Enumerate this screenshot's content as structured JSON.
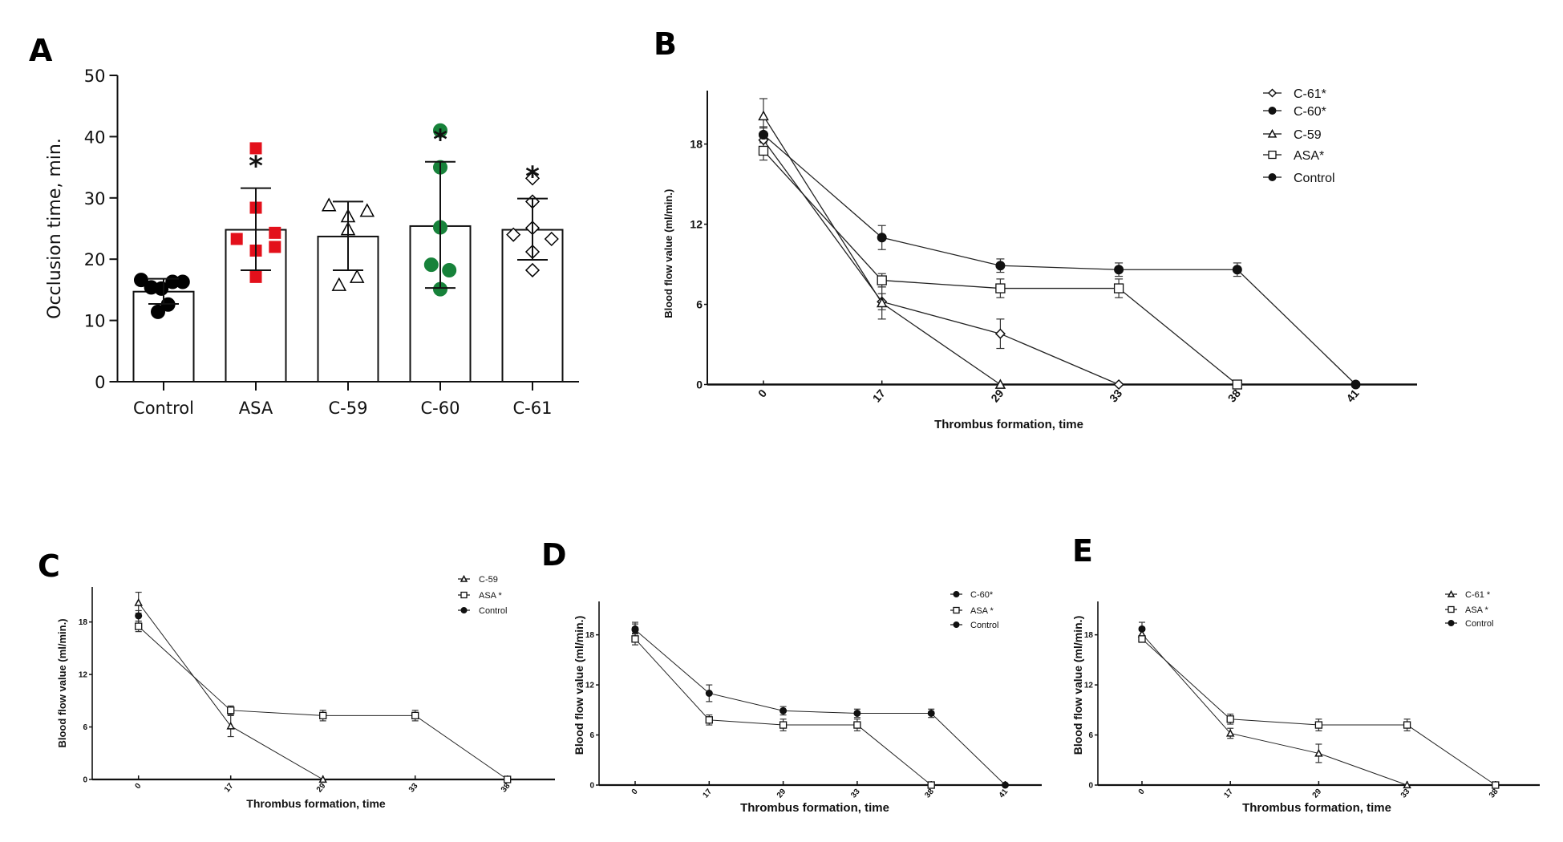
{
  "figure": {
    "panel_letters": [
      "A",
      "B",
      "C",
      "D",
      "E"
    ]
  },
  "chart_data": [
    {
      "panel": "A",
      "type": "bar",
      "title": "",
      "xlabel": "",
      "ylabel": "Occlusion time, min.",
      "ylim": [
        0,
        50
      ],
      "yticks": [
        0,
        10,
        20,
        30,
        40,
        50
      ],
      "grid": false,
      "categories": [
        "Control",
        "ASA",
        "C-59",
        "C-60",
        "C-61"
      ],
      "values": [
        14.7,
        24.8,
        23.7,
        25.4,
        24.8
      ],
      "error_upper": [
        16.8,
        31.6,
        29.4,
        35.9,
        29.9
      ],
      "error_lower": [
        12.7,
        18.2,
        18.2,
        15.3,
        19.9
      ],
      "significance": [
        "",
        "*",
        "",
        "*",
        "*"
      ],
      "markers": [
        "filled-circle",
        "filled-square",
        "open-triangle",
        "filled-circle",
        "open-diamond"
      ],
      "marker_colors": [
        "#000000",
        "#e3101b",
        "#000000",
        "#17823a",
        "#000000"
      ],
      "points": [
        [
          16.6,
          15.4,
          15.2,
          16.3,
          16.3,
          12.6,
          11.4
        ],
        [
          38.1,
          28.4,
          24.3,
          23.3,
          22.0,
          21.4,
          17.1
        ],
        [
          28.8,
          27.9,
          27.0,
          24.9,
          17.1,
          15.8
        ],
        [
          41.0,
          35.0,
          25.2,
          19.1,
          18.2,
          15.1
        ],
        [
          33.2,
          29.4,
          25.1,
          24.0,
          23.3,
          21.2,
          18.2
        ]
      ],
      "point_offsets": [
        [
          -1.0,
          -0.55,
          -0.1,
          0.4,
          0.85,
          0.2,
          -0.25
        ],
        [
          0,
          0,
          0.85,
          -0.85,
          0.85,
          0,
          0
        ],
        [
          -0.85,
          0.85,
          0,
          0,
          0.4,
          -0.4
        ],
        [
          0,
          0,
          0,
          -0.4,
          0.4,
          0
        ],
        [
          0,
          0,
          0,
          -0.85,
          0.85,
          0,
          0
        ]
      ]
    },
    {
      "panel": "B",
      "type": "line",
      "title": "",
      "xlabel": "Thrombus formation, time",
      "ylabel": "Blood flow value (ml/min.)",
      "x": [
        "0",
        "17",
        "29",
        "33",
        "38",
        "41"
      ],
      "ylim": [
        0,
        22
      ],
      "yticks": [
        0,
        6,
        12,
        18
      ],
      "grid": false,
      "legend_position": "top-right",
      "series": [
        {
          "name": "C-61*",
          "marker": "open-diamond",
          "values": [
            18.3,
            6.2,
            3.8,
            0,
            null,
            null
          ],
          "err": [
            0,
            0.6,
            1.1,
            0,
            null,
            null
          ]
        },
        {
          "name": "C-60*",
          "marker": "filled-circle",
          "values": [
            18.7,
            11.0,
            8.9,
            8.6,
            8.6,
            0
          ],
          "err": [
            0.5,
            0.9,
            0.5,
            0.5,
            0.5,
            0
          ]
        },
        {
          "name": "C-59",
          "marker": "open-triangle",
          "values": [
            20.1,
            6.1,
            0,
            null,
            null,
            null
          ],
          "err": [
            1.3,
            1.2,
            0,
            null,
            null,
            null
          ]
        },
        {
          "name": "ASA*",
          "marker": "open-square",
          "values": [
            17.5,
            7.8,
            7.2,
            7.2,
            0,
            null
          ],
          "err": [
            0.7,
            0.5,
            0.7,
            0.7,
            0,
            null
          ]
        },
        {
          "name": "Control",
          "marker": "filled-circle",
          "values": [
            18.7,
            null,
            null,
            null,
            null,
            null
          ],
          "err": [
            0.6,
            null,
            null,
            null,
            null,
            null
          ]
        }
      ]
    },
    {
      "panel": "C",
      "type": "line",
      "title": "",
      "xlabel": "Thrombus formation, time",
      "ylabel": "Blood flow value (ml/min.)",
      "x": [
        "0",
        "17",
        "29",
        "33",
        "38"
      ],
      "ylim": [
        0,
        22
      ],
      "yticks": [
        0,
        6,
        12,
        18
      ],
      "grid": false,
      "legend_position": "top-right",
      "series": [
        {
          "name": "C-59",
          "marker": "open-triangle",
          "values": [
            20.2,
            6.1,
            0,
            null,
            null
          ],
          "err": [
            1.2,
            1.2,
            0,
            null,
            null
          ]
        },
        {
          "name": "ASA *",
          "marker": "open-square",
          "values": [
            17.5,
            7.9,
            7.3,
            7.3,
            0
          ],
          "err": [
            0.6,
            0.5,
            0.6,
            0.6,
            0
          ]
        },
        {
          "name": "Control",
          "marker": "filled-circle",
          "values": [
            18.7,
            null,
            null,
            null,
            null
          ],
          "err": [
            0.6,
            null,
            null,
            null,
            null
          ]
        }
      ]
    },
    {
      "panel": "D",
      "type": "line",
      "title": "",
      "xlabel": "Thrombus formation, time",
      "ylabel": "Blood flow value (ml/min.)",
      "x": [
        "0",
        "17",
        "29",
        "33",
        "38",
        "41"
      ],
      "ylim": [
        0,
        22
      ],
      "yticks": [
        0,
        6,
        12,
        18
      ],
      "grid": false,
      "legend_position": "top-right",
      "series": [
        {
          "name": "C-60*",
          "marker": "filled-circle",
          "values": [
            18.6,
            11.0,
            8.9,
            8.6,
            8.6,
            0
          ],
          "err": [
            0.9,
            1.0,
            0.5,
            0.5,
            0.5,
            0
          ]
        },
        {
          "name": "ASA *",
          "marker": "open-square",
          "values": [
            17.5,
            7.8,
            7.2,
            7.2,
            0,
            null
          ],
          "err": [
            0.7,
            0.6,
            0.7,
            0.7,
            0,
            null
          ]
        },
        {
          "name": "Control",
          "marker": "filled-circle",
          "values": [
            18.7,
            null,
            null,
            null,
            null,
            null
          ],
          "err": [
            0.6,
            null,
            null,
            null,
            null,
            null
          ]
        }
      ]
    },
    {
      "panel": "E",
      "type": "line",
      "title": "",
      "xlabel": "Thrombus formation, time",
      "ylabel": "Blood flow value (ml/min.)",
      "x": [
        "0",
        "17",
        "29",
        "33",
        "38"
      ],
      "ylim": [
        0,
        22
      ],
      "yticks": [
        0,
        6,
        12,
        18
      ],
      "grid": false,
      "legend_position": "top-right",
      "series": [
        {
          "name": "C-61 *",
          "marker": "open-triangle",
          "values": [
            18.1,
            6.2,
            3.8,
            0,
            null
          ],
          "err": [
            0.4,
            0.6,
            1.1,
            0,
            null
          ]
        },
        {
          "name": "ASA *",
          "marker": "open-square",
          "values": [
            17.5,
            7.9,
            7.2,
            7.2,
            0
          ],
          "err": [
            0.4,
            0.6,
            0.7,
            0.7,
            0
          ]
        },
        {
          "name": "Control",
          "marker": "filled-circle",
          "values": [
            18.7,
            null,
            null,
            null,
            null
          ],
          "err": [
            0.8,
            null,
            null,
            null,
            null
          ]
        }
      ]
    }
  ]
}
